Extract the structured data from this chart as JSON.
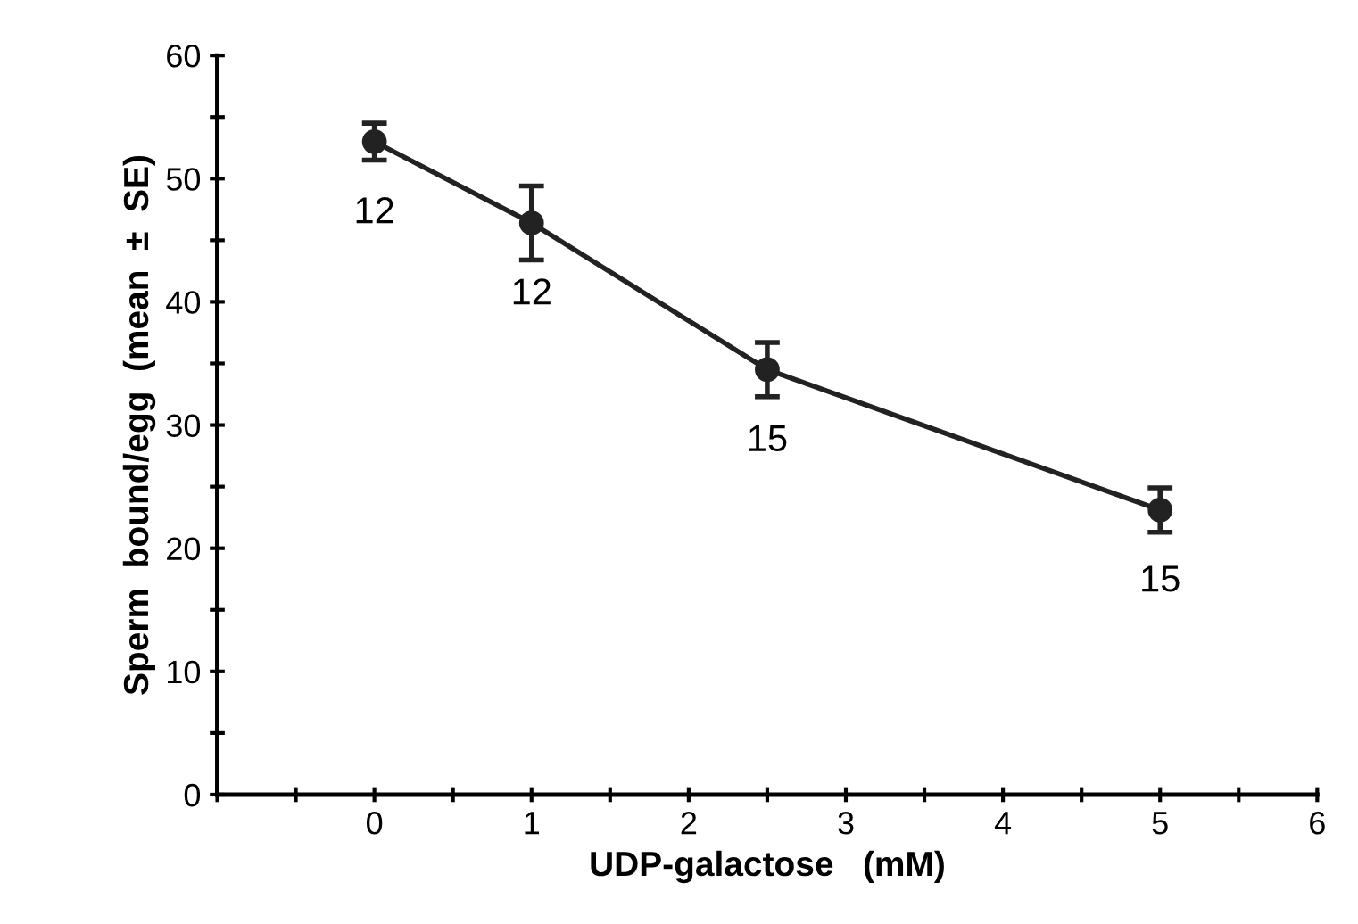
{
  "chart_data": {
    "type": "line",
    "xlabel": "UDP-galactose   (mM)",
    "ylabel": "Sperm  bound/egg  (mean  ±  SE)",
    "x": [
      0,
      1,
      2.5,
      5
    ],
    "series": [
      {
        "color": "#222222",
        "values": [
          53,
          46.4,
          34.5,
          23.1
        ],
        "errors": [
          1.5,
          3,
          2.2,
          1.8
        ]
      }
    ],
    "marker": "circle",
    "line_style": "solid",
    "grid": false,
    "xlim": [
      -1,
      6
    ],
    "ylim": [
      0,
      60
    ],
    "xticks": [
      {
        "value": -1,
        "label": null
      },
      {
        "value": -0.5,
        "label": null
      },
      0,
      {
        "value": 0.5,
        "label": null
      },
      1,
      {
        "value": 1.5,
        "label": null
      },
      2,
      {
        "value": 2.5,
        "label": null
      },
      3,
      {
        "value": 3.5,
        "label": null
      },
      4,
      {
        "value": 4.5,
        "label": null
      },
      5,
      {
        "value": 5.5,
        "label": null
      },
      6
    ],
    "yticks": [
      0,
      {
        "value": 5,
        "label": null
      },
      10,
      {
        "value": 15,
        "label": null
      },
      20,
      {
        "value": 25,
        "label": null
      },
      30,
      {
        "value": 35,
        "label": null
      },
      40,
      {
        "value": 45,
        "label": null
      },
      50,
      {
        "value": 55,
        "label": null
      },
      60
    ],
    "annotations": [
      {
        "text": "12",
        "x": 0,
        "y": 53
      },
      {
        "text": "12",
        "x": 1,
        "y": 46.4
      },
      {
        "text": "15",
        "x": 2.5,
        "y": 34.5
      },
      {
        "text": "15",
        "x": 5,
        "y": 23.1
      }
    ]
  }
}
